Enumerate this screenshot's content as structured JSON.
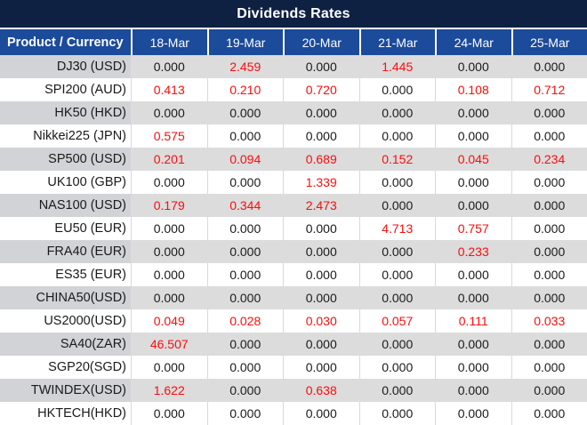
{
  "title_bar": {
    "title": "Dividends Rates"
  },
  "colors": {
    "title_bar_bg": "#0f2142",
    "header_bg": "#1c4b9c",
    "alt_row_bg": "#dcdcdc",
    "alt_product_cell_bg": "#d2d3d7",
    "value_red": "#fb0d0d",
    "value_black": "#1a1a1a"
  },
  "chart_data": {
    "type": "table",
    "title": "Dividends Rates",
    "product_column_header": "Product / Currency",
    "columns": [
      "18-Mar",
      "19-Mar",
      "20-Mar",
      "21-Mar",
      "24-Mar",
      "25-Mar"
    ],
    "rows": [
      {
        "product": "DJ30 (USD)",
        "values": [
          "0.000",
          "2.459",
          "0.000",
          "1.445",
          "0.000",
          "0.000"
        ],
        "red": [
          false,
          true,
          false,
          true,
          false,
          false
        ]
      },
      {
        "product": "SPI200 (AUD)",
        "values": [
          "0.413",
          "0.210",
          "0.720",
          "0.000",
          "0.108",
          "0.712"
        ],
        "red": [
          true,
          true,
          true,
          false,
          true,
          true
        ]
      },
      {
        "product": "HK50 (HKD)",
        "values": [
          "0.000",
          "0.000",
          "0.000",
          "0.000",
          "0.000",
          "0.000"
        ],
        "red": [
          false,
          false,
          false,
          false,
          false,
          false
        ]
      },
      {
        "product": "Nikkei225 (JPN)",
        "values": [
          "0.575",
          "0.000",
          "0.000",
          "0.000",
          "0.000",
          "0.000"
        ],
        "red": [
          true,
          false,
          false,
          false,
          false,
          false
        ]
      },
      {
        "product": "SP500 (USD)",
        "values": [
          "0.201",
          "0.094",
          "0.689",
          "0.152",
          "0.045",
          "0.234"
        ],
        "red": [
          true,
          true,
          true,
          true,
          true,
          true
        ]
      },
      {
        "product": "UK100 (GBP)",
        "values": [
          "0.000",
          "0.000",
          "1.339",
          "0.000",
          "0.000",
          "0.000"
        ],
        "red": [
          false,
          false,
          true,
          false,
          false,
          false
        ]
      },
      {
        "product": "NAS100 (USD)",
        "values": [
          "0.179",
          "0.344",
          "2.473",
          "0.000",
          "0.000",
          "0.000"
        ],
        "red": [
          true,
          true,
          true,
          false,
          false,
          false
        ]
      },
      {
        "product": "EU50 (EUR)",
        "values": [
          "0.000",
          "0.000",
          "0.000",
          "4.713",
          "0.757",
          "0.000"
        ],
        "red": [
          false,
          false,
          false,
          true,
          true,
          false
        ]
      },
      {
        "product": "FRA40 (EUR)",
        "values": [
          "0.000",
          "0.000",
          "0.000",
          "0.000",
          "0.233",
          "0.000"
        ],
        "red": [
          false,
          false,
          false,
          false,
          true,
          false
        ]
      },
      {
        "product": "ES35 (EUR)",
        "values": [
          "0.000",
          "0.000",
          "0.000",
          "0.000",
          "0.000",
          "0.000"
        ],
        "red": [
          false,
          false,
          false,
          false,
          false,
          false
        ]
      },
      {
        "product": "CHINA50(USD)",
        "values": [
          "0.000",
          "0.000",
          "0.000",
          "0.000",
          "0.000",
          "0.000"
        ],
        "red": [
          false,
          false,
          false,
          false,
          false,
          false
        ]
      },
      {
        "product": "US2000(USD)",
        "values": [
          "0.049",
          "0.028",
          "0.030",
          "0.057",
          "0.111",
          "0.033"
        ],
        "red": [
          true,
          true,
          true,
          true,
          true,
          true
        ]
      },
      {
        "product": "SA40(ZAR)",
        "values": [
          "46.507",
          "0.000",
          "0.000",
          "0.000",
          "0.000",
          "0.000"
        ],
        "red": [
          true,
          false,
          false,
          false,
          false,
          false
        ]
      },
      {
        "product": "SGP20(SGD)",
        "values": [
          "0.000",
          "0.000",
          "0.000",
          "0.000",
          "0.000",
          "0.000"
        ],
        "red": [
          false,
          false,
          false,
          false,
          false,
          false
        ]
      },
      {
        "product": "TWINDEX(USD)",
        "values": [
          "1.622",
          "0.000",
          "0.638",
          "0.000",
          "0.000",
          "0.000"
        ],
        "red": [
          true,
          false,
          true,
          false,
          false,
          false
        ]
      },
      {
        "product": "HKTECH(HKD)",
        "values": [
          "0.000",
          "0.000",
          "0.000",
          "0.000",
          "0.000",
          "0.000"
        ],
        "red": [
          false,
          false,
          false,
          false,
          false,
          false
        ]
      }
    ]
  }
}
